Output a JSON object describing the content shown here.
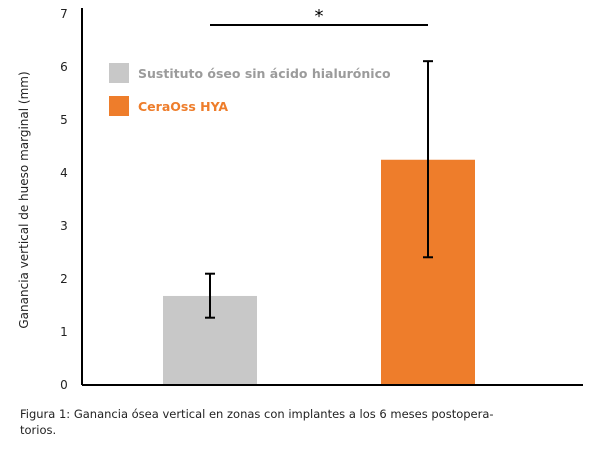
{
  "chart_data": {
    "type": "bar",
    "categories": [
      "Sustituto óseo sin ácido hialurónico",
      "CeraOss HYA"
    ],
    "series": [
      {
        "values": [
          1.68,
          4.25
        ],
        "error_low": [
          1.27,
          2.41
        ],
        "error_high": [
          2.1,
          6.11
        ],
        "colors": [
          "#c8c8c8",
          "#ee7d2b"
        ]
      }
    ],
    "ylabel": "Ganancia vertical de hueso marginal  (mm)",
    "xlabel": "",
    "ylim": [
      0,
      7
    ],
    "yticks": [
      "0",
      "1",
      "2",
      "3",
      "4",
      "5",
      "6",
      "7"
    ],
    "grid": false,
    "legend": {
      "placement": "top-left",
      "items": [
        {
          "label": "Sustituto óseo sin ácido hialurónico",
          "color": "#c8c8c8",
          "text_color": "#9b9b9b"
        },
        {
          "label": "CeraOss HYA",
          "color": "#ee7d2b",
          "text_color": "#ee7d2b"
        }
      ]
    },
    "annotation": {
      "text": "*",
      "between": [
        0,
        1
      ]
    }
  },
  "caption": "Figura 1: Ganancia ósea vertical en zonas con implantes a los 6 meses postopera-torios."
}
